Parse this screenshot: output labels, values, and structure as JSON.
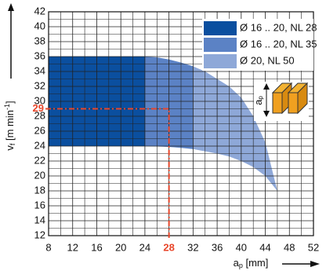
{
  "chart_data": {
    "type": "area",
    "x_label": {
      "main": "a",
      "sub": "p",
      "rest": " [mm]"
    },
    "y_label": {
      "main": "v",
      "sub": "f",
      "rest": " [m min",
      "sup": "-1",
      "end": "]"
    },
    "icon_label": {
      "main": "a",
      "sub": "p"
    },
    "xlim": [
      8,
      52
    ],
    "xticks": [
      8,
      12,
      16,
      20,
      24,
      28,
      32,
      36,
      40,
      44,
      48,
      52
    ],
    "ylim": [
      12,
      42
    ],
    "yticks": [
      12,
      14,
      16,
      18,
      20,
      22,
      24,
      26,
      28,
      30,
      32,
      34,
      36,
      38,
      40,
      42
    ],
    "minor_xticks": [
      10,
      14,
      18,
      22,
      26,
      30,
      34,
      38,
      42,
      46,
      50
    ],
    "minor_yticks": [
      13,
      15,
      17,
      19,
      21,
      23,
      25,
      27,
      29,
      31,
      33,
      35,
      37,
      39,
      41
    ],
    "grid": true,
    "legend": "upper right",
    "series": [
      {
        "name": "Ø 20, NL 50",
        "color": "#8ea8d8",
        "x": [
          24,
          28,
          32,
          34,
          36,
          38,
          40,
          42,
          44,
          46
        ],
        "upper": [
          36,
          35.6,
          34.7,
          34,
          33,
          32,
          30.5,
          28,
          24.5,
          18
        ],
        "lower": [
          24,
          23.9,
          23.6,
          23.3,
          23,
          22.6,
          22,
          21.2,
          20,
          18
        ]
      },
      {
        "name": "Ø 16 .. 20, NL 35",
        "color": "#5b82c5",
        "x": [
          24,
          26,
          28,
          30,
          32
        ],
        "upper": [
          36,
          35.9,
          35.6,
          35.2,
          34.7
        ],
        "lower": [
          24,
          24,
          23.9,
          23.8,
          23.6
        ]
      },
      {
        "name": "Ø 16 .. 20, NL 28",
        "color": "#0b4f9f",
        "x": [
          8,
          24
        ],
        "upper": [
          36,
          36
        ],
        "lower": [
          24,
          24
        ]
      }
    ],
    "marker": {
      "x": 28,
      "y": 29,
      "color": "#e8462a"
    }
  }
}
